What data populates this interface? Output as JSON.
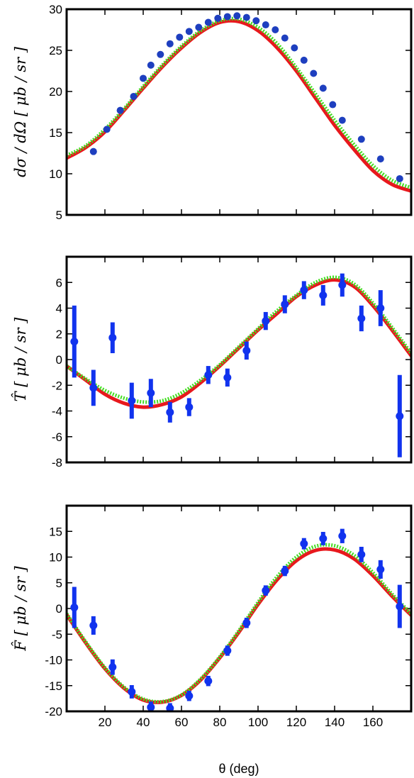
{
  "chart_data": [
    {
      "type": "line",
      "id": "cross-section",
      "ylabel": "dσ / dΩ [ μb / sr ]",
      "xlim": [
        0,
        180
      ],
      "ylim": [
        5,
        30
      ],
      "yticks": [
        5,
        10,
        15,
        20,
        25,
        30
      ],
      "xticks": [
        20,
        40,
        60,
        80,
        100,
        120,
        140,
        160
      ],
      "show_xtick_labels": false,
      "series": [
        {
          "kind": "points",
          "color": "#1e3fbf",
          "x": [
            14,
            21,
            28,
            35,
            40,
            44,
            49,
            54,
            59,
            64,
            69,
            74,
            79,
            84,
            89,
            94,
            99,
            104,
            109,
            114,
            119,
            124,
            129,
            134,
            139,
            144,
            154,
            164,
            174
          ],
          "y": [
            12.7,
            15.4,
            17.7,
            19.4,
            21.6,
            23.2,
            24.5,
            25.8,
            26.6,
            27.3,
            27.8,
            28.4,
            28.9,
            29.1,
            29.2,
            29.0,
            28.6,
            28.1,
            27.5,
            26.5,
            25.3,
            23.8,
            22.2,
            20.4,
            18.4,
            16.5,
            14.2,
            11.8,
            9.4
          ]
        },
        {
          "kind": "line",
          "style": "dotted",
          "color": "#44dd22",
          "x": [
            0,
            10,
            20,
            30,
            40,
            50,
            60,
            70,
            80,
            90,
            100,
            110,
            120,
            130,
            140,
            150,
            160,
            170,
            180
          ],
          "y": [
            12.2,
            13.4,
            15.4,
            17.9,
            20.6,
            23.2,
            25.5,
            27.4,
            28.6,
            28.8,
            27.8,
            25.8,
            22.9,
            19.7,
            16.5,
            13.6,
            11.0,
            9.2,
            8.3
          ]
        },
        {
          "kind": "line",
          "style": "solid",
          "color": "#e8181d",
          "x": [
            0,
            10,
            20,
            30,
            40,
            50,
            60,
            70,
            80,
            90,
            100,
            110,
            120,
            130,
            140,
            150,
            160,
            170,
            180
          ],
          "y": [
            11.9,
            13.2,
            15.1,
            17.7,
            20.4,
            23.0,
            25.3,
            27.2,
            28.4,
            28.5,
            27.4,
            25.3,
            22.5,
            19.2,
            15.9,
            13.0,
            10.4,
            8.7,
            7.9
          ]
        }
      ]
    },
    {
      "type": "line",
      "id": "T-observable",
      "ylabel": "T̂ [ μb / sr ]",
      "xlim": [
        0,
        180
      ],
      "ylim": [
        -8,
        8
      ],
      "yticks": [
        -8,
        -6,
        -4,
        -2,
        0,
        2,
        4,
        6
      ],
      "xticks": [
        20,
        40,
        60,
        80,
        100,
        120,
        140,
        160
      ],
      "show_xtick_labels": false,
      "series": [
        {
          "kind": "errorbars",
          "color": "#1133ee",
          "x": [
            4,
            14,
            24,
            34,
            44,
            54,
            64,
            74,
            84,
            94,
            104,
            114,
            124,
            134,
            144,
            154,
            164,
            174
          ],
          "y": [
            1.4,
            -2.2,
            1.7,
            -3.2,
            -2.6,
            -4.1,
            -3.7,
            -1.2,
            -1.4,
            0.7,
            3.0,
            4.3,
            5.4,
            5.0,
            5.8,
            3.2,
            4.0,
            -4.4
          ],
          "err": [
            2.8,
            1.4,
            1.2,
            1.4,
            1.1,
            0.8,
            0.7,
            0.7,
            0.7,
            0.7,
            0.7,
            0.7,
            0.7,
            0.8,
            0.9,
            1.0,
            1.4,
            3.2
          ]
        },
        {
          "kind": "line",
          "style": "dotted",
          "color": "#44dd22",
          "x": [
            0,
            10,
            20,
            30,
            40,
            50,
            60,
            70,
            80,
            90,
            100,
            110,
            120,
            130,
            140,
            150,
            160,
            170,
            180
          ],
          "y": [
            -0.5,
            -1.5,
            -2.4,
            -3.0,
            -3.3,
            -3.2,
            -2.6,
            -1.6,
            -0.4,
            1.0,
            2.4,
            3.8,
            5.0,
            6.0,
            6.4,
            5.9,
            4.4,
            2.5,
            0.5
          ]
        },
        {
          "kind": "line",
          "style": "solid",
          "color": "#e8181d",
          "x": [
            0,
            10,
            20,
            30,
            40,
            50,
            60,
            70,
            80,
            90,
            100,
            110,
            120,
            130,
            140,
            150,
            160,
            170,
            180
          ],
          "y": [
            -0.5,
            -1.6,
            -2.7,
            -3.4,
            -3.7,
            -3.5,
            -2.9,
            -1.8,
            -0.5,
            0.9,
            2.3,
            3.6,
            4.9,
            5.8,
            6.2,
            5.7,
            4.2,
            2.3,
            0.3
          ]
        }
      ]
    },
    {
      "type": "line",
      "id": "F-observable",
      "ylabel": "F̂ [ μb / sr ]",
      "xlabel": "θ (deg)",
      "xlim": [
        0,
        180
      ],
      "ylim": [
        -20,
        20
      ],
      "yticks": [
        -20,
        -15,
        -10,
        -5,
        0,
        5,
        10,
        15
      ],
      "xticks": [
        20,
        40,
        60,
        80,
        100,
        120,
        140,
        160
      ],
      "show_xtick_labels": true,
      "series": [
        {
          "kind": "errorbars",
          "color": "#1133ee",
          "x": [
            4,
            14,
            24,
            34,
            44,
            54,
            64,
            74,
            84,
            94,
            104,
            114,
            124,
            134,
            144,
            154,
            164,
            174
          ],
          "y": [
            0.2,
            -3.3,
            -11.4,
            -16.2,
            -19.2,
            -19.4,
            -17.0,
            -14.1,
            -8.2,
            -2.8,
            3.5,
            7.3,
            12.6,
            13.6,
            14.1,
            10.5,
            7.6,
            0.4
          ],
          "err": [
            4.0,
            1.8,
            1.5,
            1.3,
            1.1,
            1.0,
            1.0,
            1.0,
            1.0,
            1.0,
            1.0,
            1.0,
            1.1,
            1.3,
            1.4,
            1.5,
            1.8,
            4.2
          ]
        },
        {
          "kind": "line",
          "style": "dotted",
          "color": "#44dd22",
          "x": [
            0,
            10,
            20,
            30,
            40,
            50,
            60,
            70,
            80,
            90,
            100,
            110,
            120,
            130,
            140,
            150,
            160,
            170,
            180
          ],
          "y": [
            -1.0,
            -6.5,
            -11.5,
            -15.3,
            -17.6,
            -18.1,
            -16.8,
            -13.7,
            -9.4,
            -4.3,
            1.2,
            6.2,
            10.0,
            12.1,
            12.2,
            10.4,
            7.0,
            2.8,
            -1.0
          ]
        },
        {
          "kind": "line",
          "style": "solid",
          "color": "#e8181d",
          "x": [
            0,
            10,
            20,
            30,
            40,
            50,
            60,
            70,
            80,
            90,
            100,
            110,
            120,
            130,
            140,
            150,
            160,
            170,
            180
          ],
          "y": [
            -1.2,
            -6.7,
            -11.7,
            -15.5,
            -17.8,
            -18.2,
            -16.9,
            -13.9,
            -9.6,
            -4.6,
            0.8,
            5.6,
            9.3,
            11.3,
            11.4,
            9.7,
            6.4,
            2.4,
            -1.3
          ]
        }
      ]
    }
  ]
}
